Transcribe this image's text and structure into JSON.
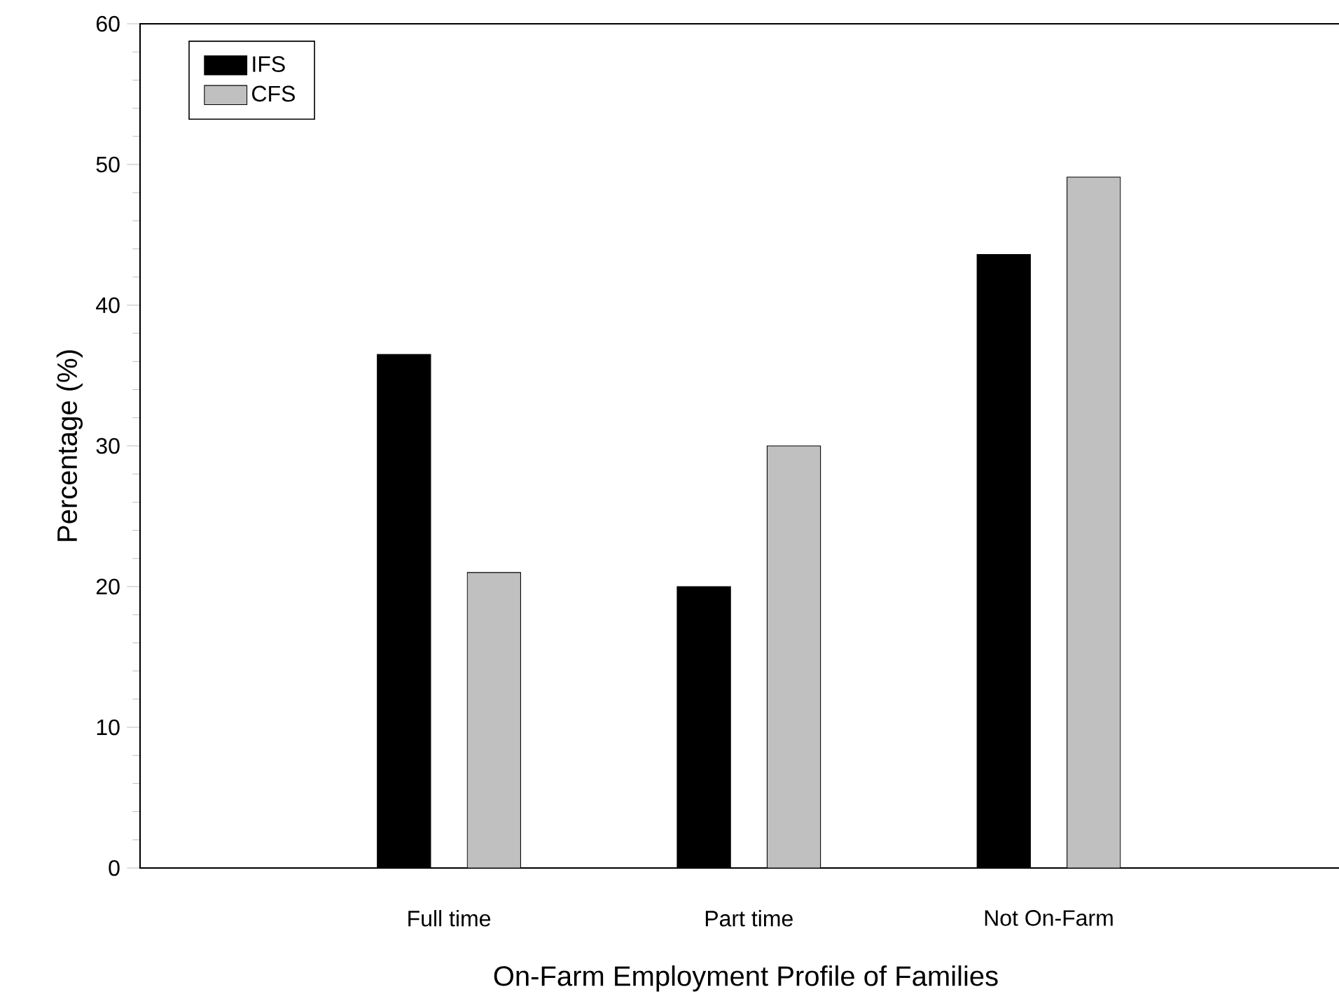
{
  "chart_data": {
    "type": "bar",
    "xlabel": "On-Farm Employment Profile of Families",
    "ylabel": "Percentage (%)",
    "categories": [
      "Full time",
      "Part time",
      "Not On-Farm"
    ],
    "series": [
      {
        "name": "IFS",
        "color": "#000000",
        "values": [
          36.5,
          20,
          43.6
        ]
      },
      {
        "name": "CFS",
        "color": "#c0c0c0",
        "values": [
          21,
          30,
          49.1
        ]
      }
    ],
    "ylim": [
      0,
      60
    ],
    "yticks": [
      0,
      10,
      20,
      30,
      40,
      50,
      60
    ],
    "legend": "top left"
  }
}
